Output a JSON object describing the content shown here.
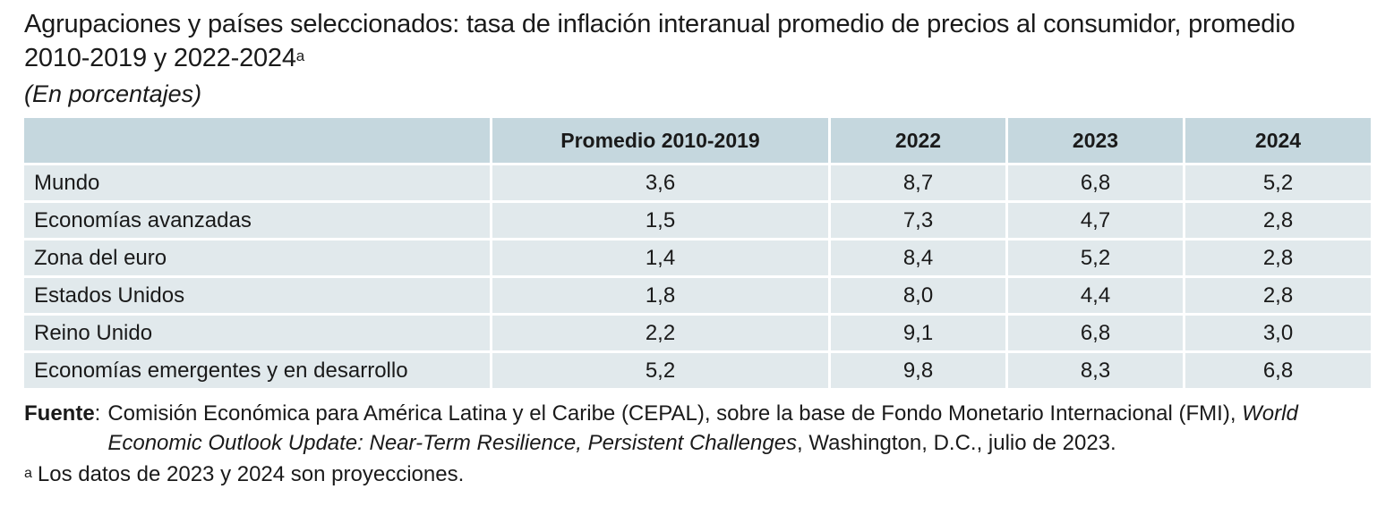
{
  "title": {
    "main": "Agrupaciones y países seleccionados: tasa de inflación interanual promedio de precios al consumidor, promedio 2010-2019 y 2022-2024",
    "footnote_mark": "a",
    "subtitle": "(En porcentajes)"
  },
  "table": {
    "headers": [
      "",
      "Promedio 2010-2019",
      "2022",
      "2023",
      "2024"
    ],
    "rows": [
      {
        "label": "Mundo",
        "values": [
          "3,6",
          "8,7",
          "6,8",
          "5,2"
        ]
      },
      {
        "label": "Economías avanzadas",
        "values": [
          "1,5",
          "7,3",
          "4,7",
          "2,8"
        ]
      },
      {
        "label": "Zona del euro",
        "values": [
          "1,4",
          "8,4",
          "5,2",
          "2,8"
        ]
      },
      {
        "label": "Estados Unidos",
        "values": [
          "1,8",
          "8,0",
          "4,4",
          "2,8"
        ]
      },
      {
        "label": "Reino Unido",
        "values": [
          "2,2",
          "9,1",
          "6,8",
          "3,0"
        ]
      },
      {
        "label": "Economías emergentes y en desarrollo",
        "values": [
          "5,2",
          "9,8",
          "8,3",
          "6,8"
        ]
      }
    ]
  },
  "source": {
    "label": "Fuente",
    "separator": ":",
    "text_before": "Comisión Económica para América Latina y el Caribe (CEPAL), sobre la base de Fondo Monetario Internacional (FMI), ",
    "italic_title": "World Economic Outlook Update: Near-Term Resilience, Persistent Challenges",
    "text_after": ", Washington, D.C., julio de 2023."
  },
  "note": {
    "mark": "a",
    "text": "Los datos de 2023 y 2024 son proyecciones."
  },
  "colors": {
    "header_bg": "#c5d7de",
    "row_bg": "#e1e9ec"
  }
}
